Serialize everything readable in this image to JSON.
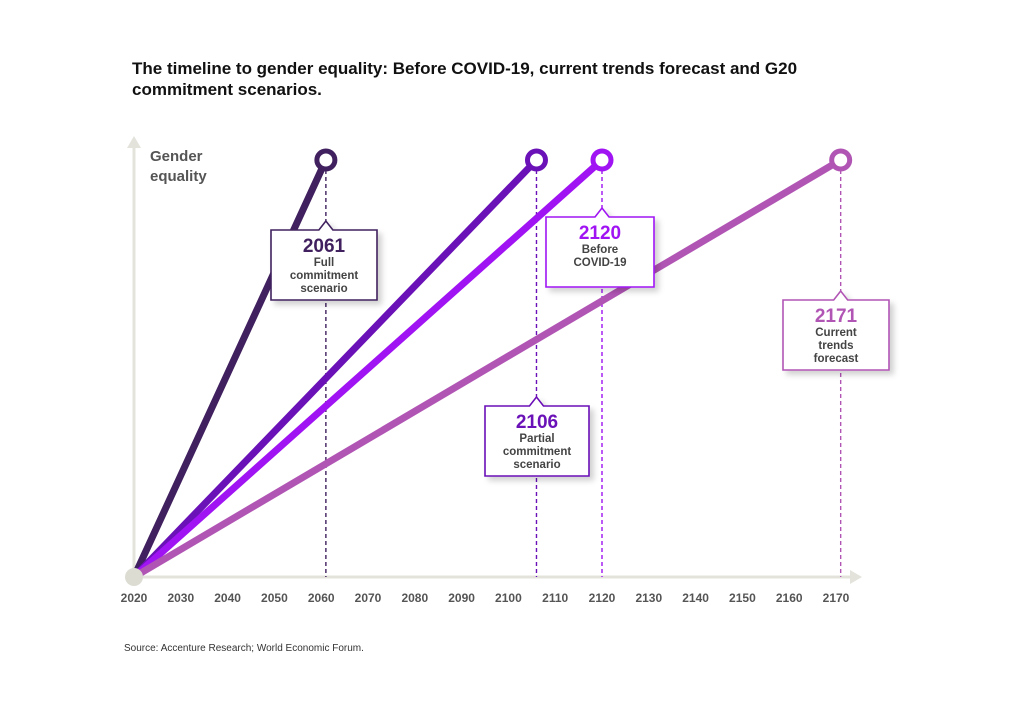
{
  "title": "The timeline to gender equality: Before COVID-19, current trends forecast and G20 commitment scenarios.",
  "source": "Source: Accenture Research; World Economic Forum.",
  "chart_data": {
    "type": "line",
    "xlabel": "",
    "ylabel": "Gender equality",
    "ylabel_lines": [
      "Gender",
      "equality"
    ],
    "x_ticks": [
      2020,
      2030,
      2040,
      2050,
      2060,
      2070,
      2080,
      2090,
      2100,
      2110,
      2120,
      2130,
      2140,
      2150,
      2160,
      2170
    ],
    "xlim": [
      2020,
      2175
    ],
    "grid": false,
    "start_year": 2020,
    "series": [
      {
        "end_year": 2061,
        "color": "#40205e",
        "label_year": "2061",
        "label_lines": [
          "Full",
          "commitment",
          "scenario"
        ]
      },
      {
        "end_year": 2106,
        "color": "#6a11b7",
        "label_year": "2106",
        "label_lines": [
          "Partial",
          "commitment",
          "scenario"
        ]
      },
      {
        "end_year": 2120,
        "color": "#a013f3",
        "label_year": "2120",
        "label_lines": [
          "Before",
          "COVID-19"
        ]
      },
      {
        "end_year": 2171,
        "color": "#b155b5",
        "label_year": "2171",
        "label_lines": [
          "Current",
          "trends",
          "forecast"
        ]
      }
    ]
  }
}
